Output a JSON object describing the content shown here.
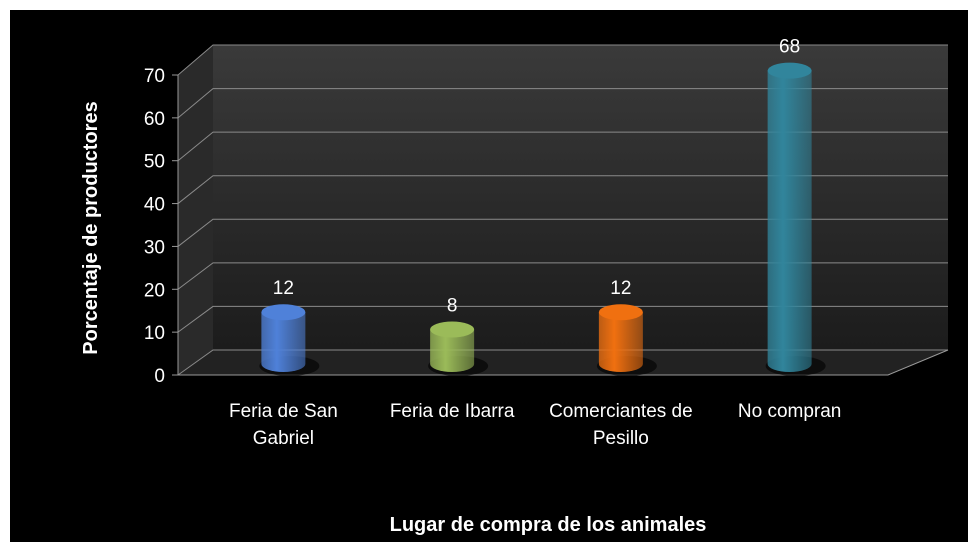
{
  "chart_data": {
    "type": "bar",
    "categories": [
      "Feria de San Gabriel",
      "Feria de Ibarra",
      "Comerciantes de Pesillo",
      "No compran"
    ],
    "values": [
      12,
      8,
      12,
      68
    ],
    "colors": [
      "#4f81d9",
      "#9bbb59",
      "#f07010",
      "#31859c"
    ],
    "ylim": [
      0,
      70
    ],
    "yticks": [
      0,
      10,
      20,
      30,
      40,
      50,
      60,
      70
    ],
    "grid": true,
    "ylabel": "Porcentaje de productores",
    "xlabel": "Lugar de compra de los animales"
  }
}
